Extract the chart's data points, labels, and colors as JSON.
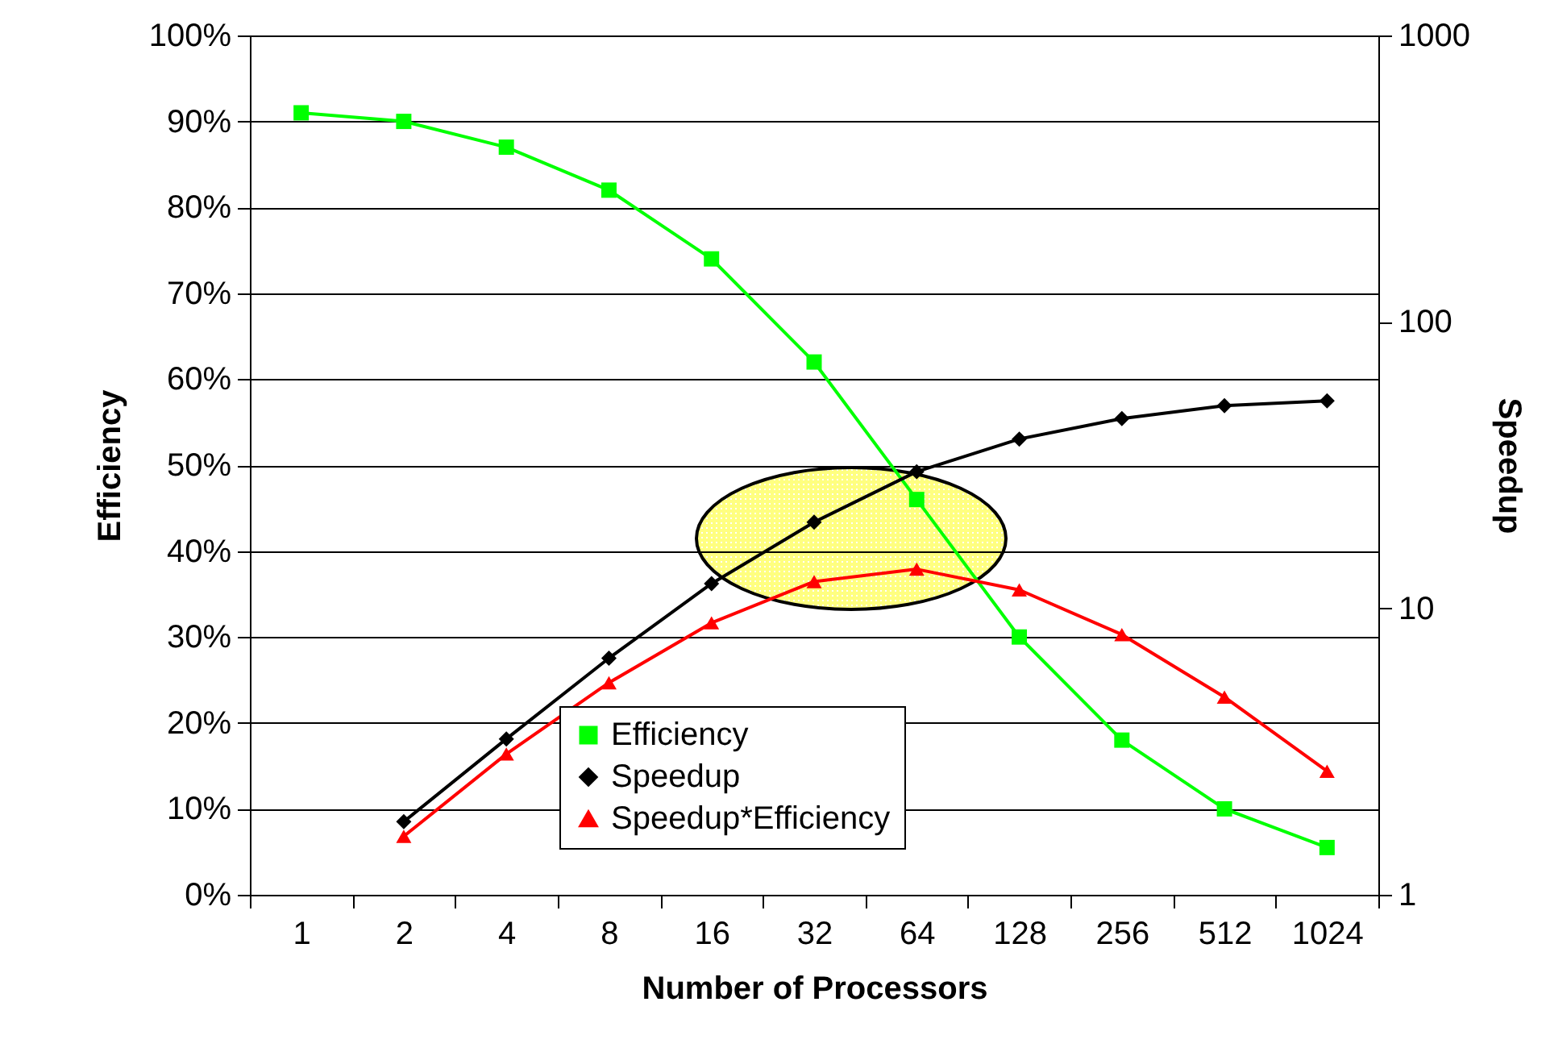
{
  "chart_data": {
    "type": "line",
    "xlabel": "Number of Processors",
    "ylabel": "Efficiency",
    "y2label": "Speedup",
    "categories": [
      "1",
      "2",
      "4",
      "8",
      "16",
      "32",
      "64",
      "128",
      "256",
      "512",
      "1024"
    ],
    "series": [
      {
        "name": "Efficiency",
        "color": "#00ff00",
        "marker": "square",
        "values": [
          91,
          90,
          87,
          82,
          74,
          62,
          46,
          30,
          18,
          10,
          5.5
        ]
      },
      {
        "name": "Speedup",
        "color": "#000000",
        "marker": "diamond",
        "axis": "y2",
        "values": [
          null,
          1.8,
          3.5,
          6.7,
          12.2,
          20,
          30,
          39,
          46,
          51,
          53
        ]
      },
      {
        "name": "Speedup*Efficiency",
        "color": "#ff0000",
        "marker": "triangle",
        "axis": "y2",
        "values": [
          null,
          1.6,
          3.1,
          5.5,
          8.9,
          12.4,
          13.7,
          11.6,
          8.1,
          4.9,
          2.7
        ]
      }
    ],
    "ylim": [
      0,
      100
    ],
    "yticks": [
      {
        "value": 0,
        "label": "0%"
      },
      {
        "value": 10,
        "label": "10%"
      },
      {
        "value": 20,
        "label": "20%"
      },
      {
        "value": 30,
        "label": "30%"
      },
      {
        "value": 40,
        "label": "40%"
      },
      {
        "value": 50,
        "label": "50%"
      },
      {
        "value": 60,
        "label": "60%"
      },
      {
        "value": 70,
        "label": "70%"
      },
      {
        "value": 80,
        "label": "80%"
      },
      {
        "value": 90,
        "label": "90%"
      },
      {
        "value": 100,
        "label": "100%"
      }
    ],
    "y2lim": [
      1,
      1000
    ],
    "y2ticks": [
      1,
      10,
      100,
      1000
    ],
    "log": "y2",
    "grid": "y",
    "legend": "bottom"
  }
}
